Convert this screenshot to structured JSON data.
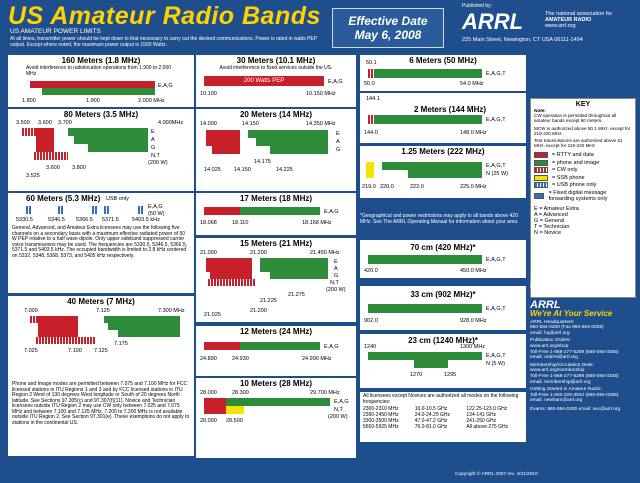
{
  "header": {
    "title": "US Amateur Radio Bands",
    "subtitle": "US AMATEUR POWER LIMITS",
    "limits": "At all times, transmitter power should be kept down to that necessary to carry out the desired communications. Power is rated in watts PEP output. Except where noted, the maximum power output is 1500 Watts."
  },
  "effective": {
    "line1": "Effective Date",
    "line2": "May 6, 2008"
  },
  "publisher": {
    "pub_by": "Published by:",
    "logo": "ARRL",
    "tag1": "The national association for",
    "tag2": "AMATEUR RADIO",
    "web": "www.arrl.org",
    "address": "225 Main Street, Newington, CT USA 06111-1494"
  },
  "bands": {
    "b160": {
      "title": "160 Meters (1.8 MHz)",
      "note": "Avoid interference to radiolocation operations from 1.900 to 2.000 MHz",
      "lo": "1.800",
      "mid": "1.900",
      "hi": "2.000 MHz",
      "cls": "E,A,G"
    },
    "b80": {
      "title": "80 Meters (3.5 MHz)",
      "t1": "3.500",
      "t2": "3.600",
      "t3": "3.700",
      "hi": "4.000MHz",
      "b1": "3.525",
      "b2": "3.600",
      "b3": "3.800",
      "e": "E",
      "a": "A",
      "g": "G",
      "n": "N,T",
      "w": "(200 W)"
    },
    "b60": {
      "title": "60 Meters (5.3 MHz)",
      "usb": "USB only",
      "f1": "5330.5",
      "f2": "5346.5",
      "f3": "5366.5",
      "f4": "5371.5",
      "f5": "5403.5 kHz",
      "cls": "E,A,G",
      "w": "(50 W)",
      "text": "General, Advanced, and Amateur Extra licensees may use the following five channels on a secondary basis with a maximum effective radiated power of 50 W PEP relative to a half wave dipole. Only upper sideband suppressed carrier voice transmissions may be used. The frequencies are 5330.5, 5346.5, 5366.5, 5371.5 and 5403.5 kHz. The occupied bandwidth is limited to 2.8 kHz centered on 5332, 5348, 5368, 5373, and 5405 kHz respectively."
    },
    "b40": {
      "title": "40 Meters (7 MHz)",
      "t1": "7.000",
      "t2": "7.125",
      "t3": "7.300 MHz",
      "b1": "7.025",
      "b2": "7.100",
      "b3": "7.125",
      "b4": "7.175",
      "text": "Phone and Image modes are permitted between 7.075 and 7.100 MHz for FCC licensed stations in ITU Regions 1 and 3 and by FCC licensed stations in ITU Region 2 West of 130 degrees West longitude or South of 20 degrees North latitude. See Sections 97.305(c) and 97.307(f)(11). Novice and Technician licensees outside ITU Region 2 may use CW only between 7.025 and 7.075 MHz and between 7.100 and 7.125 MHz. 7.200 to 7.300 MHz is not available outside ITU Region 2. See Section 97.301(e). These exemptions do not apply to stations in the continental US."
    },
    "b30": {
      "title": "30 Meters (10.1 MHz)",
      "note": "Avoid interference to fixed services outside the US.",
      "pep": "200 Watts PEP",
      "lo": "10.100",
      "hi": "10.150 MHz",
      "cls": "E,A,G"
    },
    "b20": {
      "title": "20 Meters (14 MHz)",
      "t1": "14.000",
      "t2": "14.150",
      "t3": "14.350 MHz",
      "b1": "14.025",
      "b2": "14.150",
      "b3": "14.175",
      "b4": "14.225",
      "e": "E",
      "a": "A",
      "g": "G"
    },
    "b17": {
      "title": "17 Meters (18 MHz)",
      "lo": "18.068",
      "mid": "18.110",
      "hi": "18.168 MHz",
      "cls": "E,A,G"
    },
    "b15": {
      "title": "15 Meters (21 MHz)",
      "t1": "21.000",
      "t2": "21.200",
      "t3": "21.450 MHz",
      "b1": "21.025",
      "b2": "21.200",
      "b3": "21.225",
      "b4": "21.275",
      "e": "E",
      "a": "A",
      "g": "G",
      "n": "N,T",
      "w": "(200 W)"
    },
    "b12": {
      "title": "12 Meters (24 MHz)",
      "lo": "24.890",
      "mid": "24.930",
      "hi": "24.990 MHz",
      "cls": "E,A,G"
    },
    "b10": {
      "title": "10 Meters (28 MHz)",
      "t1": "28.000",
      "t2": "28.300",
      "t3": "29.700 MHz",
      "b1": "28.000",
      "b2": "28.500",
      "cls1": "E,A,G",
      "cls2": "N,T",
      "w": "(200 W)"
    },
    "b6": {
      "title": "6 Meters (50 MHz)",
      "f1": "50.1",
      "lo": "50.0",
      "hi": "54.0 MHz",
      "cls": "E,A,G,T"
    },
    "b2": {
      "title": "2 Meters (144 MHz)",
      "f1": "144.1",
      "lo": "144.0",
      "hi": "148.0 MHz",
      "cls": "E,A,G,T"
    },
    "b125": {
      "title": "1.25 Meters (222 MHz)",
      "f1": "219.0",
      "f2": "220.0",
      "f3": "222.0",
      "f4": "225.0 MHz",
      "cls": "E,A,G,T",
      "n": "N (25 W)"
    },
    "geo": "*Geographical and power restrictions may apply to all bands above 420 MHz. See The ARRL Operating Manual for information about your area.",
    "b70": {
      "title": "70 cm (420 MHz)*",
      "lo": "420.0",
      "hi": "450.0 MHz",
      "cls": "E,A,G,T"
    },
    "b33": {
      "title": "33 cm (902 MHz)*",
      "lo": "902.0",
      "hi": "928.0 MHz",
      "cls": "E,A,G,T"
    },
    "b23": {
      "title": "23 cm (1240 MHz)*",
      "t1": "1240",
      "t2": "1300 MHz",
      "b1": "1270",
      "b2": "1295",
      "cls": "E,A,G,T",
      "n": "N (5 W)"
    },
    "above": {
      "intro": "All licensees except Novices are authorized all modes on the following frequencies:",
      "rows": [
        [
          "2300-2310 MHz",
          "10.0-10.5 GHz",
          "122.25-123.0 GHz"
        ],
        [
          "2390-2450 MHz",
          "24.0-24.25 GHz",
          "134-141 GHz"
        ],
        [
          "3300-3500 MHz",
          "47.0-47.2 GHz",
          "241-250 GHz"
        ],
        [
          "5650-5925 MHz",
          "76.0-81.0 GHz",
          "All above 275 GHz"
        ]
      ]
    }
  },
  "key": {
    "title": "KEY",
    "note_h": "Note:",
    "note1": "CW operation is permitted throughout all amateur bands except 60 meters.",
    "note2": "MCW is authorized above 50.1 MHz, except for 219-220 MHz.",
    "note3": "Test transmissions are authorized above 51 MHz, except for 219-220 MHz",
    "items": [
      "= RTTY and data",
      "= phone and image",
      "= CW only",
      "= SSB phone",
      "= USB phone only",
      "= Fixed digital message forwarding systems only"
    ],
    "classes": [
      "E = Amateur Extra",
      "A = Advanced",
      "G = General",
      "T = Technician",
      "N = Novice"
    ],
    "see": "See ARRLWeb at www.arrl.org for detailed band plans."
  },
  "arrl_box": {
    "logo": "ARRL",
    "slogan": "We're At Your Service",
    "hq_h": "ARRL Headquarters:",
    "hq": "860-594-0200 (Fax 860-594-0259)",
    "hq_mail": "email: hq@arrl.org",
    "pub_h": "Publication Orders:",
    "pub1": "www.arrl.org/shop",
    "pub2": "Toll-Free 1-888-277-5289 (860-594-0355)",
    "pub3": "email: orders@arrl.org",
    "mem_h": "Membership/Circulation Desk:",
    "mem1": "www.arrl.org/membership",
    "mem2": "Toll-Free 1-888-277-5289 (860-594-0338)",
    "mem3": "email: membership@arrl.org",
    "start_h": "Getting Started in Amateur Radio:",
    "start1": "Toll-Free 1-800-326-3942 (860-594-0355)",
    "start2": "email: newham@arrl.org",
    "exams": "Exams: 860-594-0300 email: vec@arrl.org",
    "copy": "Copyright © ARRL 2007 rev. 4/21/2010"
  },
  "colors": {
    "bg": "#1f4e8c",
    "red": "#c8202a",
    "green": "#2e8b3a",
    "blue": "#2f6fc0",
    "yellow": "#f4e300"
  }
}
